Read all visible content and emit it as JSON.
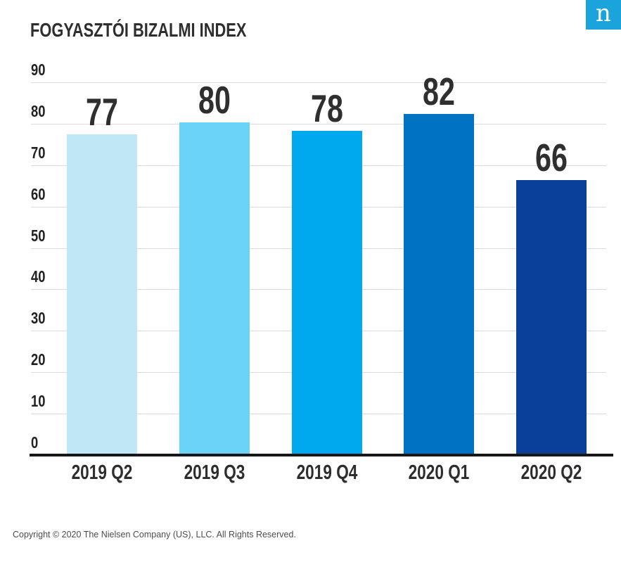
{
  "branding": {
    "logo_letter": "n",
    "logo_bg": "#1ba3dc"
  },
  "chart_data": {
    "type": "bar",
    "title": "FOGYASZTÓI BIZALMI INDEX",
    "categories": [
      "2019 Q2",
      "2019 Q3",
      "2019 Q4",
      "2020 Q1",
      "2020 Q2"
    ],
    "values": [
      77,
      80,
      78,
      82,
      66
    ],
    "value_labels": [
      "77",
      "80",
      "78",
      "82",
      "66"
    ],
    "bar_colors": [
      "#bfe7f6",
      "#6bd3f7",
      "#00a9ee",
      "#0072c3",
      "#0a3f9a"
    ],
    "xlabel": "",
    "ylabel": "",
    "ylim": [
      0,
      90
    ],
    "y_ticks": [
      0,
      10,
      20,
      30,
      40,
      50,
      60,
      70,
      80,
      90
    ],
    "grid": true,
    "legend": "none",
    "value_labels_shown": true
  },
  "colors": {
    "gridline": "#dcdcdc",
    "baseline": "#171717",
    "title_text": "#2e2e2e",
    "tick_text": "#222222",
    "value_text": "#2f2f2f"
  },
  "footer": {
    "copyright": "Copyright © 2020 The Nielsen Company (US), LLC. All Rights Reserved."
  }
}
